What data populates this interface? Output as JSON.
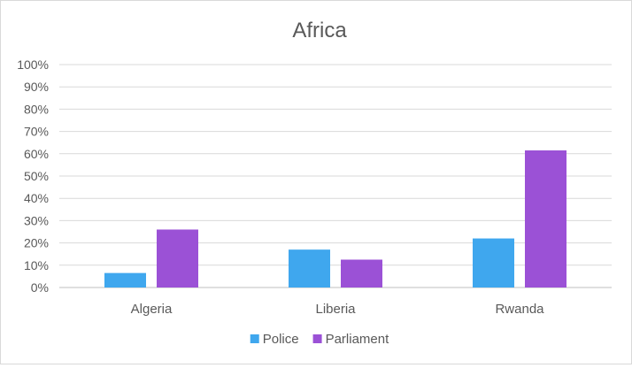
{
  "chart_data": {
    "type": "bar",
    "title": "Africa",
    "xlabel": "",
    "ylabel": "",
    "categories": [
      "Algeria",
      "Liberia",
      "Rwanda"
    ],
    "series": [
      {
        "name": "Police",
        "color": "#3fa7ee",
        "values": [
          6.5,
          17,
          22
        ]
      },
      {
        "name": "Parliament",
        "color": "#9b51d6",
        "values": [
          26,
          12.5,
          61.5
        ]
      }
    ],
    "ylim": [
      0,
      100
    ],
    "yticks": [
      "0%",
      "10%",
      "20%",
      "30%",
      "40%",
      "50%",
      "60%",
      "70%",
      "80%",
      "90%",
      "100%"
    ],
    "grid": true,
    "legend_position": "bottom"
  }
}
